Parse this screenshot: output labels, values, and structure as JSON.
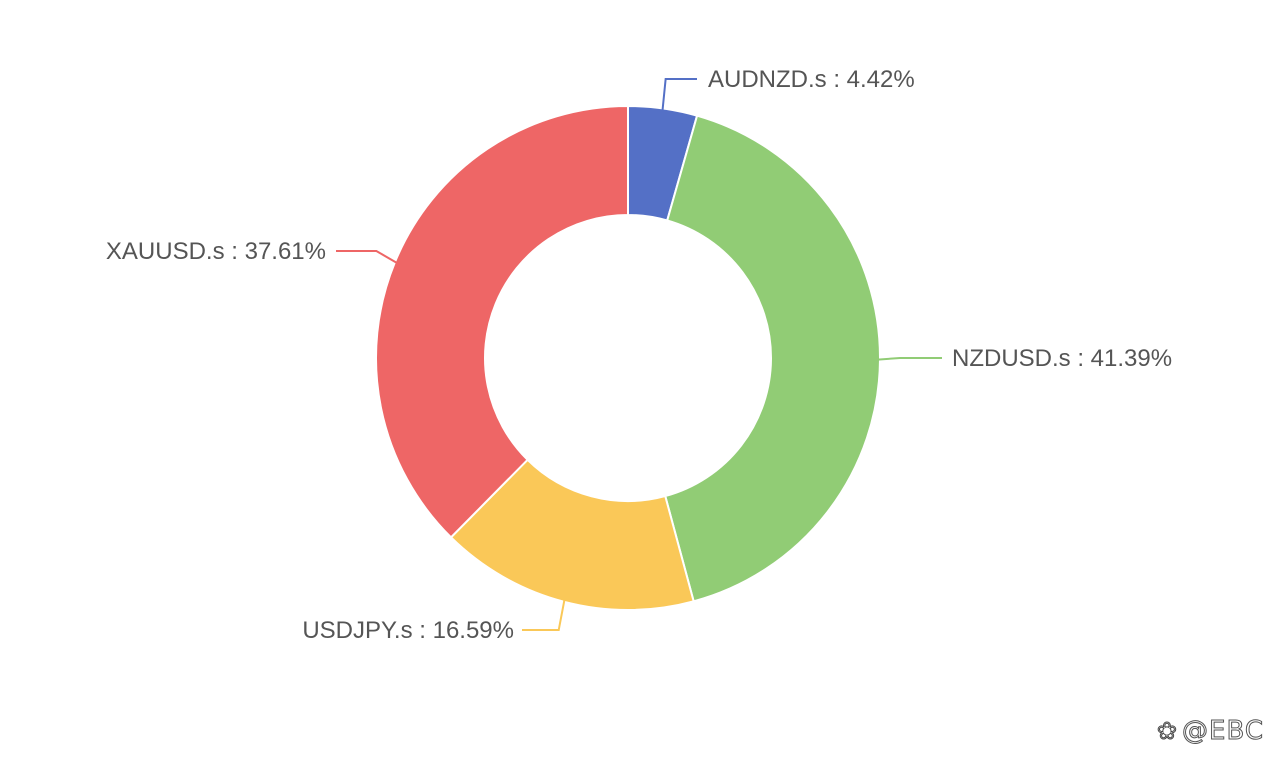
{
  "chart_data": {
    "type": "pie",
    "variant": "donut",
    "title": "",
    "slices": [
      {
        "name": "AUDNZD.s",
        "value": 4.42,
        "label": "AUDNZD.s : 4.42%",
        "color": "#5470c6"
      },
      {
        "name": "NZDUSD.s",
        "value": 41.39,
        "label": "NZDUSD.s : 41.39%",
        "color": "#91cc75"
      },
      {
        "name": "USDJPY.s",
        "value": 16.59,
        "label": "USDJPY.s : 16.59%",
        "color": "#fac858"
      },
      {
        "name": "XAUUSD.s",
        "value": 37.61,
        "label": "XAUUSD.s : 37.61%",
        "color": "#ee6666"
      }
    ],
    "start_angle": "12 o'clock",
    "direction": "clockwise",
    "legend": "none"
  },
  "watermark": {
    "text": "@EBC",
    "icon": "chat-bubble-icon"
  }
}
